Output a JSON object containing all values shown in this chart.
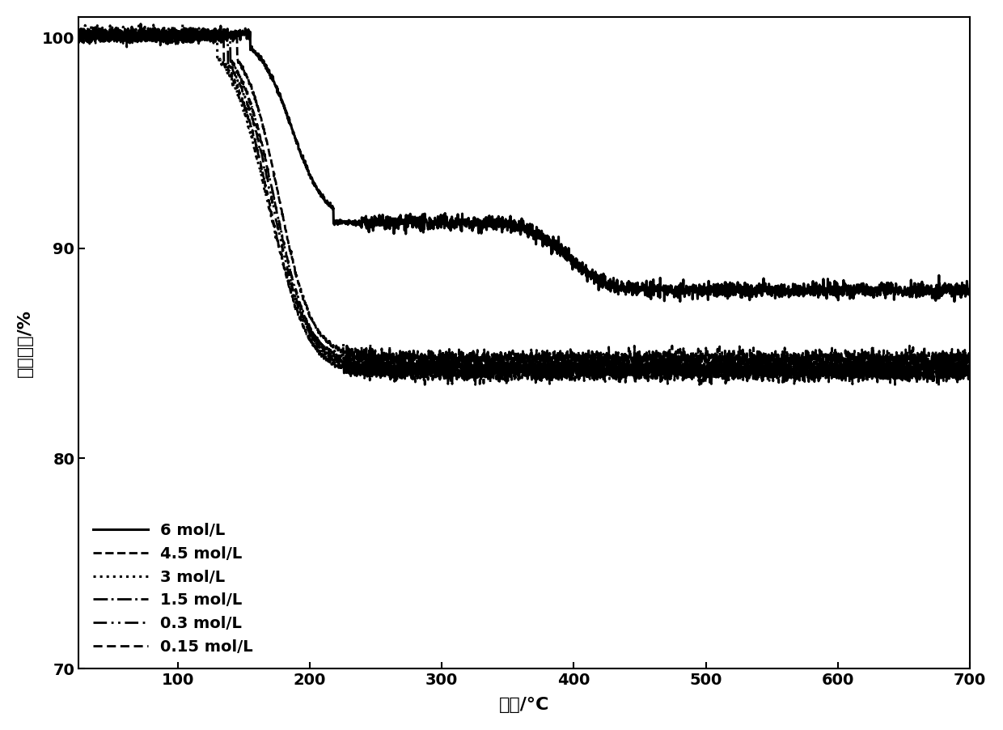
{
  "xlabel": "温度/°C",
  "ylabel": "质量变化/%",
  "xlim": [
    25,
    700
  ],
  "ylim": [
    70,
    101
  ],
  "xticks": [
    100,
    200,
    300,
    400,
    500,
    600,
    700
  ],
  "yticks": [
    70,
    80,
    90,
    100
  ],
  "series": [
    {
      "label": "6 mol/L",
      "linestyle": "solid",
      "linewidth": 2.2,
      "color": "#000000",
      "start_val": 100.2,
      "drop1_start_x": 155,
      "drop1_end_x": 218,
      "drop1_end_val": 91.2,
      "drop2_start_x": 360,
      "drop2_end_x": 430,
      "drop2_end_val": 88.0,
      "final_val": 87.8
    },
    {
      "label": "4.5 mol/L",
      "linestyle": "dashed",
      "linewidth": 2.0,
      "color": "#000000",
      "start_val": 100.1,
      "drop1_start_x": 145,
      "drop1_end_x": 208,
      "drop1_end_val": 84.8,
      "final_val": 84.5
    },
    {
      "label": "3 mol/L",
      "linestyle": "dotted",
      "linewidth": 2.2,
      "color": "#000000",
      "start_val": 100.3,
      "drop1_start_x": 130,
      "drop1_end_x": 205,
      "drop1_end_val": 84.5,
      "final_val": 84.2
    },
    {
      "label": "1.5 mol/L",
      "linestyle": "dashdot",
      "linewidth": 2.0,
      "color": "#000000",
      "start_val": 100.1,
      "drop1_start_x": 140,
      "drop1_end_x": 207,
      "drop1_end_val": 84.3,
      "final_val": 83.8
    },
    {
      "label": "0.3 mol/L",
      "linestyle": "dashdotdotted",
      "linewidth": 2.0,
      "color": "#000000",
      "start_val": 100.0,
      "drop1_start_x": 138,
      "drop1_end_x": 206,
      "drop1_end_val": 84.2,
      "final_val": 83.6
    },
    {
      "label": "0.15 mol/L",
      "linestyle": "densely_dashed",
      "linewidth": 2.0,
      "color": "#000000",
      "start_val": 100.0,
      "drop1_start_x": 135,
      "drop1_end_x": 205,
      "drop1_end_val": 84.0,
      "final_val": 83.5
    }
  ],
  "background_color": "#ffffff",
  "legend_fontsize": 14,
  "axis_fontsize": 16,
  "tick_fontsize": 14
}
